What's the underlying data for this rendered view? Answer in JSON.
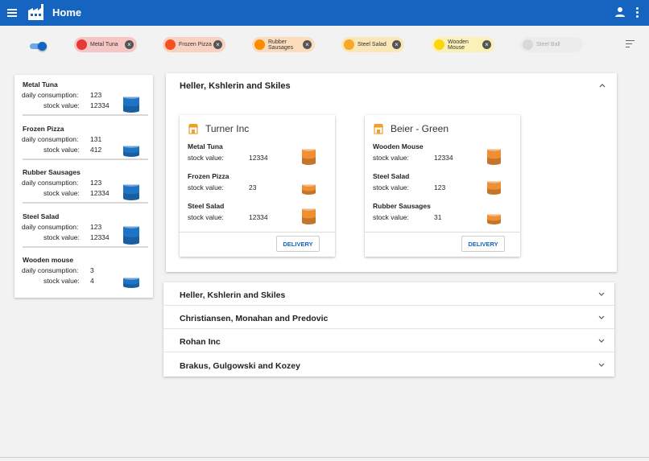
{
  "appbar": {
    "title": "Home",
    "icons": [
      "menu-icon",
      "factory-icon",
      "account-icon",
      "more-vert-icon"
    ]
  },
  "filters": {
    "toggle_on": true,
    "chips": [
      {
        "label": "Metal Tuna",
        "color": "#e53935",
        "bg": "#f6c6c4",
        "removable": true
      },
      {
        "label": "Frozen Pizza",
        "color": "#f4511e",
        "bg": "#f8d1c2",
        "removable": true
      },
      {
        "label": "Rubber Sausages",
        "color": "#fb8c00",
        "bg": "#fbdcbd",
        "removable": true
      },
      {
        "label": "Steel Salad",
        "color": "#f9a825",
        "bg": "#fbe6b8",
        "removable": true
      },
      {
        "label": "Wooden Mouse",
        "color": "#fbd60d",
        "bg": "#fbf0b8",
        "removable": true
      },
      {
        "label": "Steel Ball",
        "color": "#d8d8d8",
        "bg": "#ececec",
        "removable": false
      }
    ]
  },
  "stock": {
    "daily_label": "daily consumption:",
    "value_label": "stock value:",
    "items": [
      {
        "name": "Metal Tuna",
        "daily": "123",
        "value": "12334",
        "level": 0.8
      },
      {
        "name": "Frozen Pizza",
        "daily": "131",
        "value": "412",
        "level": 0.35
      },
      {
        "name": "Rubber Sausages",
        "daily": "123",
        "value": "12334",
        "level": 0.8
      },
      {
        "name": "Steel Salad",
        "daily": "123",
        "value": "12334",
        "level": 1.0
      },
      {
        "name": "Wooden mouse",
        "daily": "3",
        "value": "4",
        "level": 0.3
      }
    ]
  },
  "accordion_open": {
    "title": "Heller, Kshlerin and Skiles",
    "stock_value_label": "stock value:",
    "delivery_label": "DELIVERY",
    "cards": [
      {
        "name": "Turner Inc",
        "products": [
          {
            "name": "Metal Tuna",
            "value": "12334",
            "level": 0.8
          },
          {
            "name": "Frozen Pizza",
            "value": "23",
            "level": 0.3
          },
          {
            "name": "Steel Salad",
            "value": "12334",
            "level": 0.8
          }
        ]
      },
      {
        "name": "Beier - Green",
        "products": [
          {
            "name": "Wooden Mouse",
            "value": "12334",
            "level": 0.8
          },
          {
            "name": "Steel Salad",
            "value": "123",
            "level": 0.55
          },
          {
            "name": "Rubber Sausages",
            "value": "31",
            "level": 0.3
          }
        ]
      }
    ]
  },
  "accordion_closed": [
    "Heller, Kshlerin and Skiles",
    "Christiansen, Monahan and Predovic",
    "Rohan Inc",
    "Brakus, Gulgowski and Kozey"
  ],
  "colors": {
    "primary": "#1565c0",
    "blue_can": "#1e73c4",
    "orange_can": "#ef8f33"
  }
}
